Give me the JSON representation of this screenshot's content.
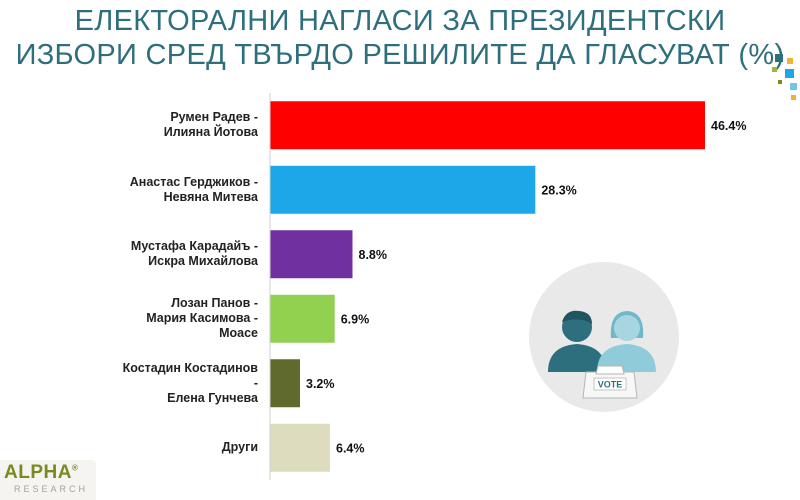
{
  "title_lines": [
    "ЕЛЕКТОРАЛНИ НАГЛАСИ ЗА ПРЕЗИДЕНТСКИ",
    "ИЗБОРИ СРЕД ТВЪРДО РЕШИЛИТЕ ДА ГЛАСУВАТ (%)"
  ],
  "logo": {
    "main": "ALPHA",
    "mark": "®",
    "sub": "RESEARCH"
  },
  "illustration": {
    "icon": "voters-ballot-box-icon",
    "ballot_text": "VOTE"
  },
  "chart_data": {
    "type": "bar",
    "orientation": "horizontal",
    "title": "ЕЛЕКТОРАЛНИ НАГЛАСИ ЗА ПРЕЗИДЕНТСКИ ИЗБОРИ СРЕД ТВЪРДО РЕШИЛИТЕ ДА ГЛАСУВАТ (%)",
    "xlabel": "",
    "ylabel": "",
    "xlim": [
      0,
      46.4
    ],
    "grid": false,
    "legend": "none",
    "value_suffix": "%",
    "categories": [
      [
        "Румен Радев -",
        "Илияна Йотова"
      ],
      [
        "Анастас Герджиков -",
        "Невяна Митева"
      ],
      [
        "Мустафа Карадайъ -",
        "Искра Михайлова"
      ],
      [
        "Лозан Панов -",
        "Мария Касимова -",
        "Моасе"
      ],
      [
        "Костадин Костадинов",
        "-",
        "Елена Гунчева"
      ],
      [
        "Други"
      ]
    ],
    "values": [
      46.4,
      28.3,
      8.8,
      6.9,
      3.2,
      6.4
    ],
    "colors": [
      "#ff0000",
      "#1ea7e8",
      "#7030a0",
      "#92d050",
      "#5f6a2c",
      "#dedcbf"
    ]
  }
}
